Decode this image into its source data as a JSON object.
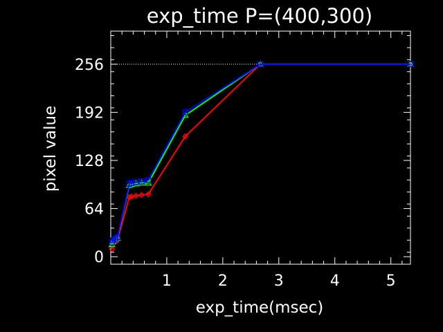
{
  "chart_data": {
    "type": "line",
    "title": "exp_time  P=(400,300)",
    "xlabel": "exp_time(msec)",
    "ylabel": "pixel value",
    "xlim": [
      0,
      5.35
    ],
    "ylim": [
      -10,
      300
    ],
    "x_ticks": [
      1,
      2,
      3,
      4,
      5
    ],
    "y_ticks": [
      0,
      64,
      128,
      192,
      256
    ],
    "reference_line": {
      "y": 256,
      "style": "dotted",
      "color": "#ffffff"
    },
    "series": [
      {
        "color": "#ff0000",
        "marker": "diamond",
        "x": [
          0.02,
          0.04,
          0.08,
          0.12,
          0.33,
          0.37,
          0.45,
          0.55,
          0.67,
          1.33,
          2.67,
          5.35
        ],
        "y": [
          10,
          17,
          20,
          22,
          79,
          80,
          81,
          82,
          83,
          160,
          256,
          256
        ]
      },
      {
        "color": "#00ff00",
        "marker": "triangle",
        "x": [
          0.02,
          0.04,
          0.08,
          0.12,
          0.33,
          0.37,
          0.45,
          0.55,
          0.67,
          1.33,
          2.67,
          5.35
        ],
        "y": [
          16,
          20,
          23,
          25,
          95,
          96,
          97,
          98,
          98,
          188,
          256,
          256
        ]
      },
      {
        "color": "#0000ff",
        "marker": "square",
        "x": [
          0.02,
          0.04,
          0.08,
          0.12,
          0.33,
          0.37,
          0.45,
          0.55,
          0.67,
          1.33,
          2.67,
          5.35
        ],
        "y": [
          19,
          22,
          24,
          26,
          97,
          98,
          99,
          100,
          102,
          192,
          256,
          256
        ]
      }
    ]
  }
}
